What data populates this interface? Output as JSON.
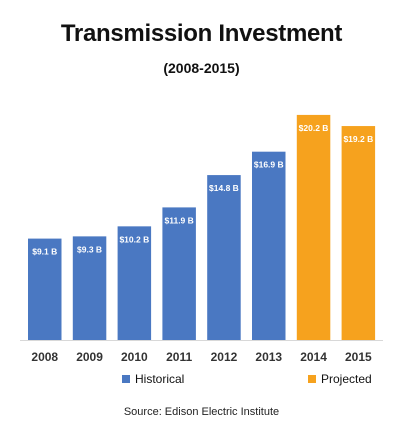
{
  "chart_data": {
    "type": "bar",
    "title": "Transmission Investment",
    "subtitle": "(2008-2015)",
    "categories": [
      "2008",
      "2009",
      "2010",
      "2011",
      "2012",
      "2013",
      "2014",
      "2015"
    ],
    "values": [
      9.1,
      9.3,
      10.2,
      11.9,
      14.8,
      16.9,
      20.2,
      19.2
    ],
    "data_labels": [
      "$9.1 B",
      "$9.3 B",
      "$10.2 B",
      "$11.9 B",
      "$14.8 B",
      "$16.9 B",
      "$20.2 B",
      "$19.2 B"
    ],
    "series_type": [
      "Historical",
      "Historical",
      "Historical",
      "Historical",
      "Historical",
      "Historical",
      "Projected",
      "Projected"
    ],
    "series": [
      {
        "name": "Historical",
        "color": "#4a78c2"
      },
      {
        "name": "Projected",
        "color": "#f6a21e"
      }
    ],
    "ylim": [
      0,
      21
    ],
    "grid": false,
    "legend_position": "bottom",
    "source": "Source: Edison Electric Institute"
  }
}
